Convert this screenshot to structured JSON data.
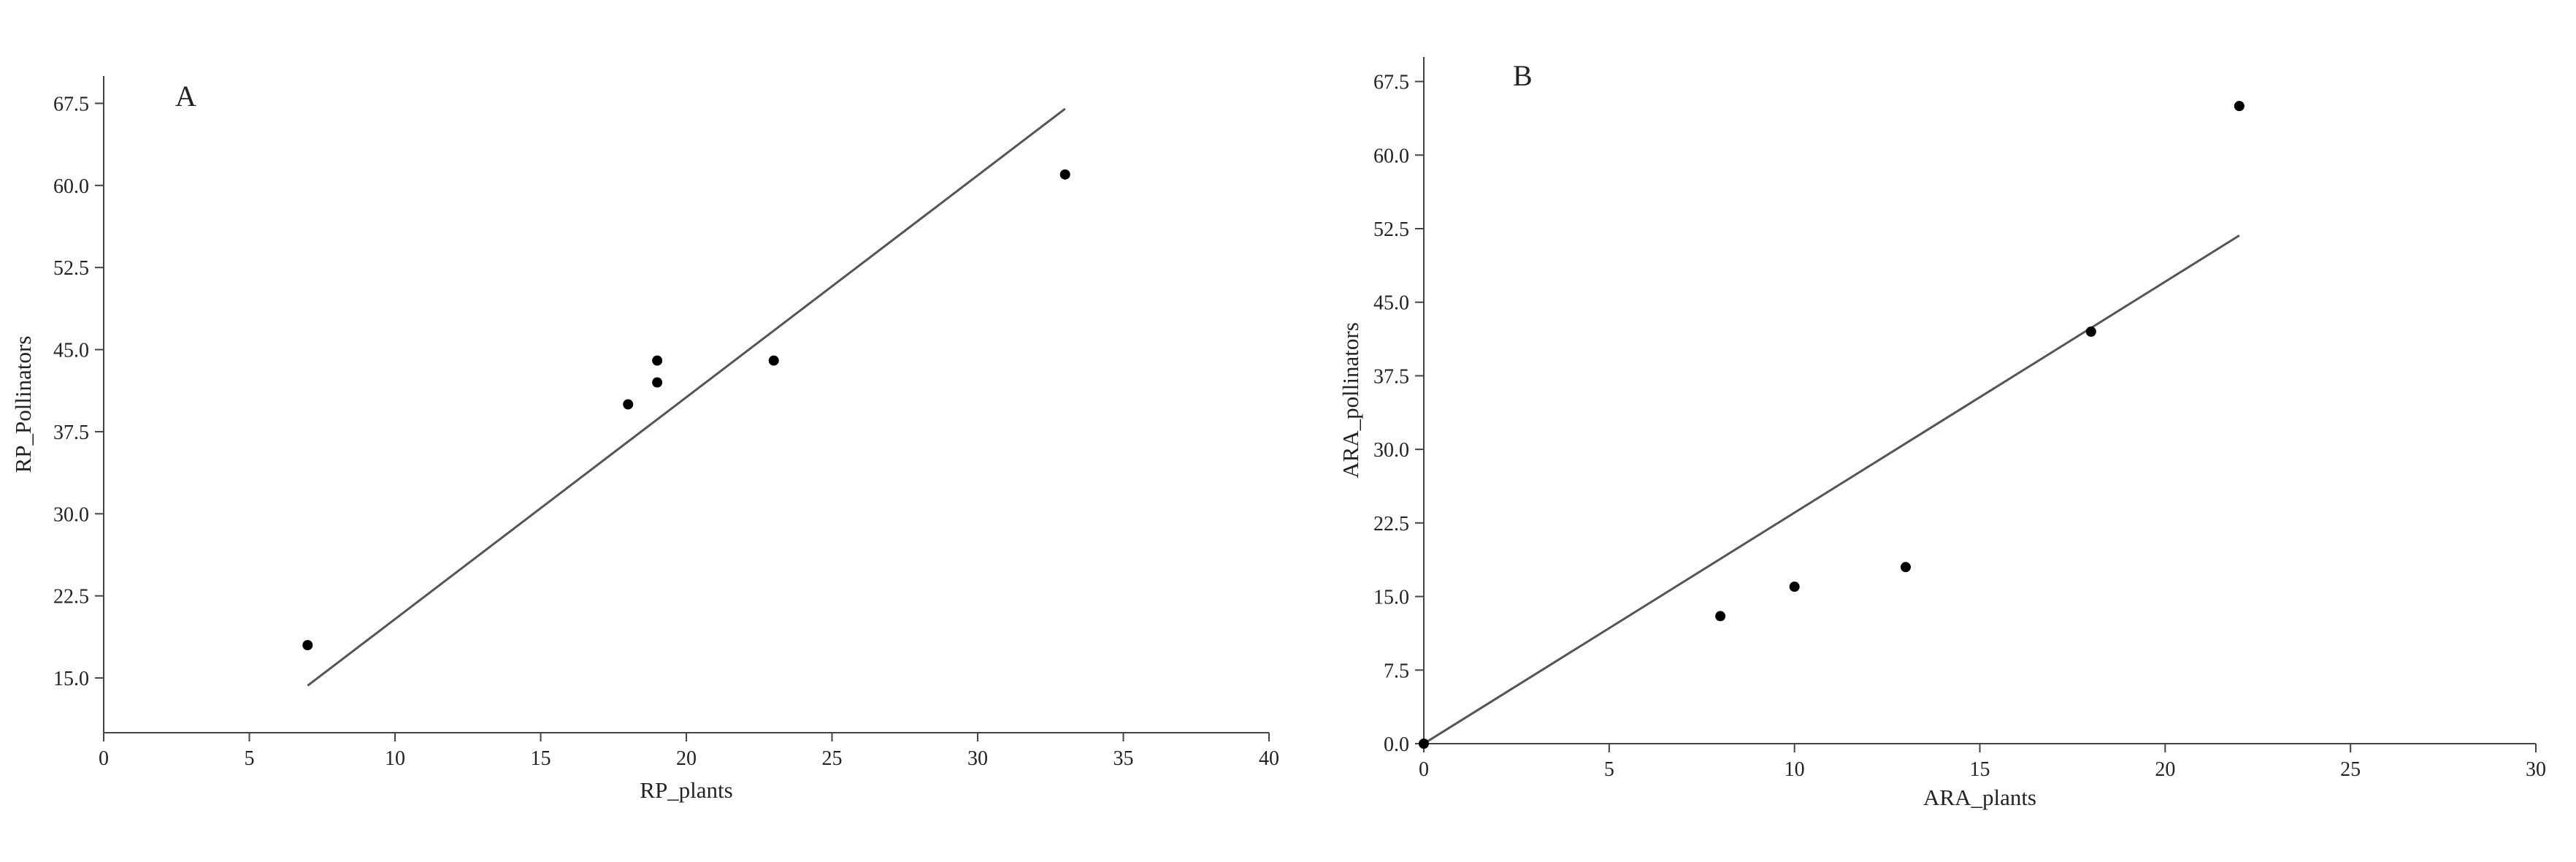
{
  "chart_data": [
    {
      "type": "scatter",
      "panel_label": "A",
      "xlabel": "RP_plants",
      "ylabel": "RP_Pollinators",
      "xlim": [
        0,
        40
      ],
      "ylim": [
        10,
        70
      ],
      "xticks": [
        0,
        5,
        10,
        15,
        20,
        25,
        30,
        35,
        40
      ],
      "yticks": [
        15.0,
        22.5,
        30.0,
        37.5,
        45.0,
        52.5,
        60.0,
        67.5
      ],
      "xtick_labels": [
        "0",
        "5",
        "10",
        "15",
        "20",
        "25",
        "30",
        "35",
        "40"
      ],
      "ytick_labels": [
        "15.0",
        "22.5",
        "30.0",
        "37.5",
        "45.0",
        "52.5",
        "60.0",
        "67.5"
      ],
      "points": [
        {
          "x": 7,
          "y": 18
        },
        {
          "x": 18,
          "y": 40
        },
        {
          "x": 19,
          "y": 42
        },
        {
          "x": 19,
          "y": 44
        },
        {
          "x": 23,
          "y": 44
        },
        {
          "x": 33,
          "y": 61
        }
      ],
      "fit_line": [
        {
          "x": 7,
          "y": 14.3
        },
        {
          "x": 33,
          "y": 67.0
        }
      ],
      "grid": false
    },
    {
      "type": "scatter",
      "panel_label": "B",
      "xlabel": "ARA_plants",
      "ylabel": "ARA_pollinators",
      "xlim": [
        0,
        30
      ],
      "ylim": [
        0,
        70
      ],
      "xticks": [
        0,
        5,
        10,
        15,
        20,
        25,
        30
      ],
      "yticks": [
        0.0,
        7.5,
        15.0,
        22.5,
        30.0,
        37.5,
        45.0,
        52.5,
        60.0,
        67.5
      ],
      "xtick_labels": [
        "0",
        "5",
        "10",
        "15",
        "20",
        "25",
        "30"
      ],
      "ytick_labels": [
        "0.0",
        "7.5",
        "15.0",
        "22.5",
        "30.0",
        "37.5",
        "45.0",
        "52.5",
        "60.0",
        "67.5"
      ],
      "points": [
        {
          "x": 0,
          "y": 0
        },
        {
          "x": 8,
          "y": 13
        },
        {
          "x": 10,
          "y": 16
        },
        {
          "x": 13,
          "y": 18
        },
        {
          "x": 18,
          "y": 42
        },
        {
          "x": 22,
          "y": 65
        }
      ],
      "fit_line": [
        {
          "x": 0,
          "y": 0
        },
        {
          "x": 22,
          "y": 51.8
        }
      ],
      "grid": false
    }
  ]
}
